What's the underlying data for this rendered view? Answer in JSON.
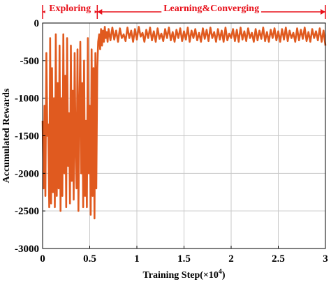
{
  "chart_data": {
    "type": "line",
    "xlabel": "Training Step(×10",
    "xlabel_exp": "4",
    "xlabel_close": ")",
    "ylabel": "Accumulated Rewards",
    "xlim": [
      0,
      3
    ],
    "ylim": [
      -3000,
      0
    ],
    "xticks": [
      0,
      0.5,
      1,
      1.5,
      2,
      2.5,
      3
    ],
    "xtick_labels": [
      "0",
      "0.5",
      "1",
      "1.5",
      "2",
      "2.5",
      "3"
    ],
    "yticks": [
      0,
      -500,
      -1000,
      -1500,
      -2000,
      -2500,
      -3000
    ],
    "ytick_labels": [
      "0",
      "-500",
      "-1000",
      "-1500",
      "-2000",
      "-2500",
      "-3000"
    ],
    "grid": true,
    "line_color": "#e05a1f",
    "annotation_color": "#e8101a",
    "phases": [
      {
        "label": "Exploring",
        "x_start": 0,
        "x_end": 0.58
      },
      {
        "label": "Learning&Converging",
        "x_start": 0.58,
        "x_end": 3
      }
    ],
    "series": [
      {
        "x": [
          0,
          0.01,
          0.02,
          0.03,
          0.04,
          0.05,
          0.06,
          0.07,
          0.08,
          0.09,
          0.1,
          0.11,
          0.12,
          0.13,
          0.14,
          0.15,
          0.16,
          0.17,
          0.18,
          0.19,
          0.2,
          0.21,
          0.22,
          0.23,
          0.24,
          0.25,
          0.26,
          0.27,
          0.28,
          0.29,
          0.3,
          0.31,
          0.32,
          0.33,
          0.34,
          0.35,
          0.36,
          0.37,
          0.38,
          0.39,
          0.4,
          0.41,
          0.42,
          0.43,
          0.44,
          0.45,
          0.46,
          0.47,
          0.48,
          0.49,
          0.5,
          0.51,
          0.52,
          0.53,
          0.54,
          0.55,
          0.56,
          0.57,
          0.58,
          0.59,
          0.6,
          0.61,
          0.62,
          0.63,
          0.64,
          0.65,
          0.66,
          0.67,
          0.68,
          0.69,
          0.7,
          0.72,
          0.74,
          0.76,
          0.78,
          0.8,
          0.82,
          0.84,
          0.86,
          0.88,
          0.9,
          0.92,
          0.94,
          0.96,
          0.98,
          1.0,
          1.02,
          1.04,
          1.06,
          1.08,
          1.1,
          1.12,
          1.14,
          1.16,
          1.18,
          1.2,
          1.22,
          1.24,
          1.26,
          1.28,
          1.3,
          1.32,
          1.34,
          1.36,
          1.38,
          1.4,
          1.42,
          1.44,
          1.46,
          1.48,
          1.5,
          1.52,
          1.54,
          1.56,
          1.58,
          1.6,
          1.62,
          1.64,
          1.66,
          1.68,
          1.7,
          1.72,
          1.74,
          1.76,
          1.78,
          1.8,
          1.82,
          1.84,
          1.86,
          1.88,
          1.9,
          1.92,
          1.94,
          1.96,
          1.98,
          2.0,
          2.02,
          2.04,
          2.06,
          2.08,
          2.1,
          2.12,
          2.14,
          2.16,
          2.18,
          2.2,
          2.22,
          2.24,
          2.26,
          2.28,
          2.3,
          2.32,
          2.34,
          2.36,
          2.38,
          2.4,
          2.42,
          2.44,
          2.46,
          2.48,
          2.5,
          2.52,
          2.54,
          2.56,
          2.58,
          2.6,
          2.62,
          2.64,
          2.66,
          2.68,
          2.7,
          2.72,
          2.74,
          2.76,
          2.78,
          2.8,
          2.82,
          2.84,
          2.86,
          2.88,
          2.9,
          2.92,
          2.94,
          2.96,
          2.98,
          3.0
        ],
        "y": [
          -1300,
          -2200,
          -1100,
          -2300,
          -400,
          -1500,
          -1350,
          -2450,
          -200,
          -2400,
          -600,
          -2250,
          -1000,
          -2450,
          -150,
          -2300,
          -800,
          -2200,
          -300,
          -2500,
          -1000,
          -2300,
          -150,
          -2000,
          -700,
          -2450,
          -200,
          -1900,
          -1200,
          -2400,
          -300,
          -2100,
          -900,
          -2350,
          -400,
          -1700,
          -2200,
          -350,
          -2500,
          -1150,
          -250,
          -2000,
          -800,
          -2450,
          -500,
          -2300,
          -1300,
          -2450,
          -200,
          -2000,
          -1100,
          -2550,
          -350,
          -2300,
          -600,
          -2600,
          -400,
          -2200,
          -600,
          -250,
          -150,
          -350,
          -80,
          -300,
          -100,
          -250,
          -50,
          -200,
          -120,
          -250,
          -80,
          -230,
          -60,
          -220,
          -100,
          -250,
          -70,
          -200,
          -150,
          -240,
          -60,
          -200,
          -100,
          -250,
          -80,
          -220,
          -50,
          -180,
          -130,
          -250,
          -90,
          -200,
          -60,
          -230,
          -110,
          -250,
          -70,
          -210,
          -140,
          -240,
          -80,
          -200,
          -60,
          -230,
          -120,
          -250,
          -90,
          -200,
          -70,
          -240,
          -110,
          -220,
          -60,
          -250,
          -100,
          -200,
          -80,
          -230,
          -130,
          -250,
          -70,
          -210,
          -90,
          -240,
          -60,
          -200,
          -120,
          -250,
          -80,
          -220,
          -100,
          -250,
          -60,
          -230,
          -140,
          -200,
          -80,
          -240,
          -90,
          -250,
          -60,
          -220,
          -110,
          -240,
          -70,
          -200,
          -130,
          -250,
          -80,
          -230,
          -100,
          -210,
          -60,
          -240,
          -120,
          -250,
          -90,
          -200,
          -70,
          -230,
          -110,
          -250,
          -80,
          -220,
          -60,
          -240,
          -100,
          -200,
          -130,
          -250,
          -70,
          -230,
          -90,
          -210,
          -60,
          -240,
          -120,
          -250,
          -80,
          -200,
          -110,
          -230,
          -70,
          -250,
          -100,
          -300
        ]
      }
    ]
  }
}
